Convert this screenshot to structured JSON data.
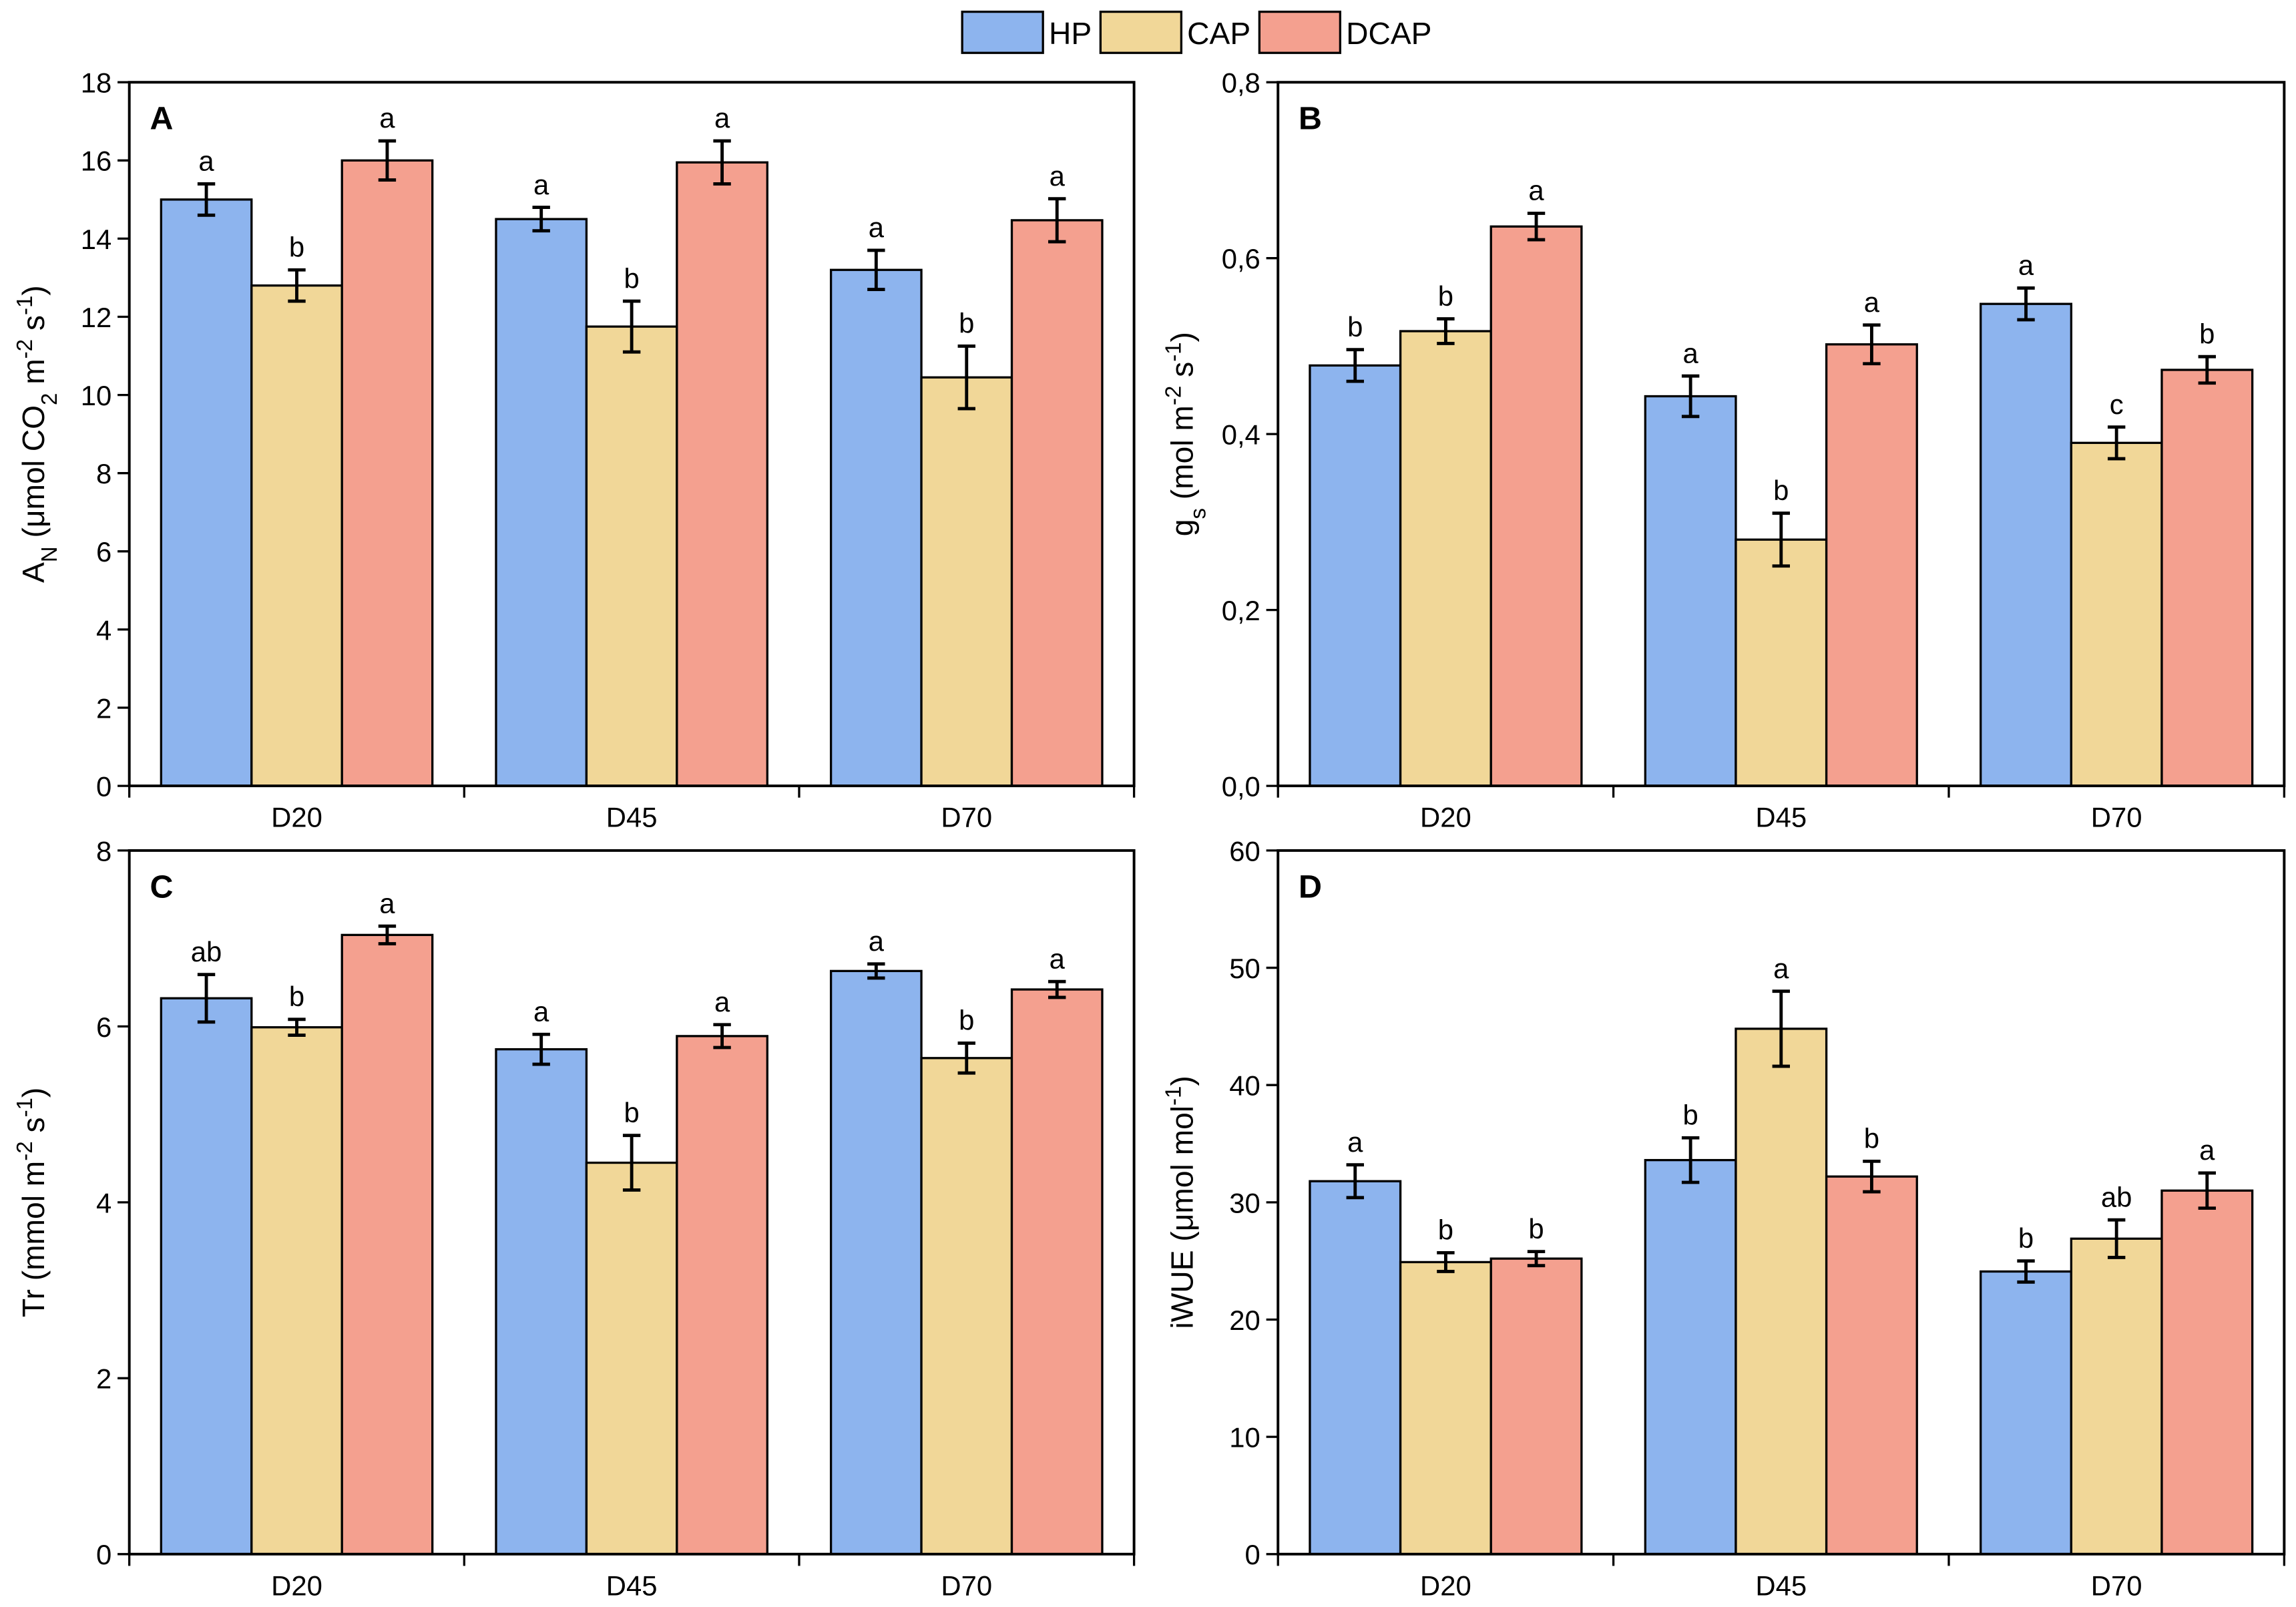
{
  "chart_data": [
    {
      "type": "bar",
      "panel_label": "A",
      "y_label": [
        {
          "text": "A"
        },
        {
          "text": "N",
          "shift": "sub"
        },
        {
          "text": " (μmol CO"
        },
        {
          "text": "2",
          "shift": "sub"
        },
        {
          "text": " m"
        },
        {
          "text": "-2",
          "shift": "super"
        },
        {
          "text": " s"
        },
        {
          "text": "-1",
          "shift": "super"
        },
        {
          "text": ")"
        }
      ],
      "categories": [
        "D20",
        "D45",
        "D70"
      ],
      "ylim": [
        0,
        18
      ],
      "yticks": [
        0,
        2,
        4,
        6,
        8,
        10,
        12,
        14,
        16,
        18
      ],
      "series": [
        {
          "name": "HP",
          "color": "#8db4ee",
          "values": [
            15.0,
            14.5,
            13.2
          ],
          "errors": [
            0.4,
            0.3,
            0.5
          ],
          "letters": [
            "a",
            "a",
            "a"
          ]
        },
        {
          "name": "CAP",
          "color": "#f1d798",
          "values": [
            12.8,
            11.75,
            10.45
          ],
          "errors": [
            0.4,
            0.65,
            0.8
          ],
          "letters": [
            "b",
            "b",
            "b"
          ]
        },
        {
          "name": "DCAP",
          "color": "#f4a08f",
          "values": [
            16.0,
            15.95,
            14.47
          ],
          "errors": [
            0.5,
            0.55,
            0.55
          ],
          "letters": [
            "a",
            "a",
            "a"
          ]
        }
      ]
    },
    {
      "type": "bar",
      "panel_label": "B",
      "y_label": [
        {
          "text": "g"
        },
        {
          "text": "s",
          "shift": "sub"
        },
        {
          "text": " (mol m"
        },
        {
          "text": "-2",
          "shift": "super"
        },
        {
          "text": " s"
        },
        {
          "text": "-1",
          "shift": "super"
        },
        {
          "text": ")"
        }
      ],
      "categories": [
        "D20",
        "D45",
        "D70"
      ],
      "ylim": [
        0,
        0.8
      ],
      "yticks": [
        {
          "value": 0,
          "label": "0,0"
        },
        {
          "value": 0.2,
          "label": "0,2"
        },
        {
          "value": 0.4,
          "label": "0,4"
        },
        {
          "value": 0.6,
          "label": "0,6"
        },
        {
          "value": 0.8,
          "label": "0,8"
        }
      ],
      "series": [
        {
          "name": "HP",
          "color": "#8db4ee",
          "values": [
            0.478,
            0.443,
            0.548
          ],
          "errors": [
            0.018,
            0.023,
            0.018
          ],
          "letters": [
            "b",
            "a",
            "a"
          ]
        },
        {
          "name": "CAP",
          "color": "#f1d798",
          "values": [
            0.517,
            0.28,
            0.39
          ],
          "errors": [
            0.014,
            0.03,
            0.018
          ],
          "letters": [
            "b",
            "b",
            "c"
          ]
        },
        {
          "name": "DCAP",
          "color": "#f4a08f",
          "values": [
            0.636,
            0.502,
            0.473
          ],
          "errors": [
            0.015,
            0.022,
            0.015
          ],
          "letters": [
            "a",
            "a",
            "b"
          ]
        }
      ]
    },
    {
      "type": "bar",
      "panel_label": "C",
      "y_label": [
        {
          "text": "Tr (mmol m"
        },
        {
          "text": "-2",
          "shift": "super"
        },
        {
          "text": " s"
        },
        {
          "text": "-1",
          "shift": "super"
        },
        {
          "text": ")"
        }
      ],
      "categories": [
        "D20",
        "D45",
        "D70"
      ],
      "ylim": [
        0,
        8
      ],
      "yticks": [
        0,
        2,
        4,
        6,
        8
      ],
      "series": [
        {
          "name": "HP",
          "color": "#8db4ee",
          "values": [
            6.32,
            5.74,
            6.63
          ],
          "errors": [
            0.27,
            0.17,
            0.08
          ],
          "letters": [
            "ab",
            "a",
            "a"
          ]
        },
        {
          "name": "CAP",
          "color": "#f1d798",
          "values": [
            5.99,
            4.45,
            5.64
          ],
          "errors": [
            0.09,
            0.31,
            0.17
          ],
          "letters": [
            "b",
            "b",
            "b"
          ]
        },
        {
          "name": "DCAP",
          "color": "#f4a08f",
          "values": [
            7.04,
            5.89,
            6.42
          ],
          "errors": [
            0.1,
            0.13,
            0.09
          ],
          "letters": [
            "a",
            "a",
            "a"
          ]
        }
      ]
    },
    {
      "type": "bar",
      "panel_label": "D",
      "y_label": [
        {
          "text": "iWUE (μmol mol"
        },
        {
          "text": "-1",
          "shift": "super"
        },
        {
          "text": ")"
        }
      ],
      "categories": [
        "D20",
        "D45",
        "D70"
      ],
      "ylim": [
        0,
        60
      ],
      "yticks": [
        0,
        10,
        20,
        30,
        40,
        50,
        60
      ],
      "series": [
        {
          "name": "HP",
          "color": "#8db4ee",
          "values": [
            31.8,
            33.6,
            24.1
          ],
          "errors": [
            1.4,
            1.9,
            0.9
          ],
          "letters": [
            "a",
            "b",
            "b"
          ]
        },
        {
          "name": "CAP",
          "color": "#f1d798",
          "values": [
            24.9,
            44.8,
            26.9
          ],
          "errors": [
            0.8,
            3.2,
            1.6
          ],
          "letters": [
            "b",
            "a",
            "ab"
          ]
        },
        {
          "name": "DCAP",
          "color": "#f4a08f",
          "values": [
            25.2,
            32.2,
            31.0
          ],
          "errors": [
            0.6,
            1.3,
            1.5
          ],
          "letters": [
            "b",
            "b",
            "a"
          ]
        }
      ]
    }
  ]
}
